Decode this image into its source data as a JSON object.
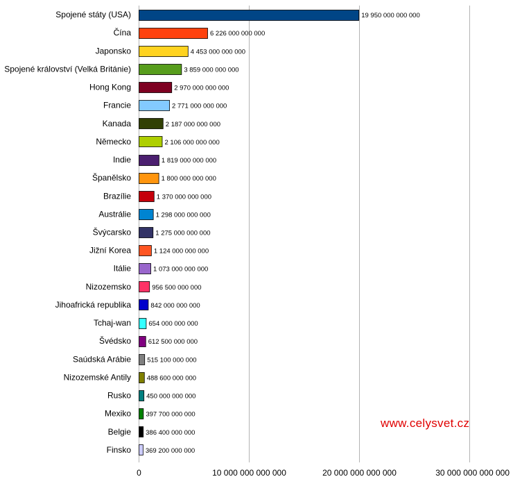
{
  "chart_data": {
    "type": "bar",
    "orientation": "horizontal",
    "categories": [
      "Spojené státy (USA)",
      "Čína",
      "Japonsko",
      "Spojené království (Velká Británie)",
      "Hong Kong",
      "Francie",
      "Kanada",
      "Německo",
      "Indie",
      "Španělsko",
      "Brazílie",
      "Austrálie",
      "Švýcarsko",
      "Jižní Korea",
      "Itálie",
      "Nizozemsko",
      "Jihoafrická republika",
      "Tchaj-wan",
      "Švédsko",
      "Saúdská Arábie",
      "Nizozemské Antily",
      "Rusko",
      "Mexiko",
      "Belgie",
      "Finsko"
    ],
    "values": [
      19950000000000,
      6226000000000,
      4453000000000,
      3859000000000,
      2970000000000,
      2771000000000,
      2187000000000,
      2106000000000,
      1819000000000,
      1800000000000,
      1370000000000,
      1298000000000,
      1275000000000,
      1124000000000,
      1073000000000,
      956500000000,
      842000000000,
      654000000000,
      612500000000,
      515100000000,
      488600000000,
      450000000000,
      397700000000,
      386400000000,
      369200000000
    ],
    "value_labels": [
      "19 950 000 000 000",
      "6 226 000 000 000",
      "4 453 000 000 000",
      "3 859 000 000 000",
      "2 970 000 000 000",
      "2 771 000 000 000",
      "2 187 000 000 000",
      "2 106 000 000 000",
      "1 819 000 000 000",
      "1 800 000 000 000",
      "1 370 000 000 000",
      "1 298 000 000 000",
      "1 275 000 000 000",
      "1 124 000 000 000",
      "1 073 000 000 000",
      "956 500 000 000",
      "842 000 000 000",
      "654 000 000 000",
      "612 500 000 000",
      "515 100 000 000",
      "488 600 000 000",
      "450 000 000 000",
      "397 700 000 000",
      "386 400 000 000",
      "369 200 000 000"
    ],
    "colors": [
      "#004586",
      "#ff420e",
      "#ffd320",
      "#579d1c",
      "#7e0021",
      "#83caff",
      "#314004",
      "#aecf00",
      "#4b1f6f",
      "#ff950e",
      "#c5000b",
      "#0084d1",
      "#333366",
      "#ff5522",
      "#9966cc",
      "#ff3366",
      "#0000cc",
      "#33ffff",
      "#800080",
      "#808080",
      "#808000",
      "#008080",
      "#008000",
      "#000000",
      "#ccccff"
    ],
    "xlim": [
      0,
      30000000000000
    ],
    "x_ticks": [
      0,
      10000000000000,
      20000000000000,
      30000000000000
    ],
    "x_tick_labels": [
      "0",
      "10 000 000 000 000",
      "20 000 000 000 000",
      "30 000 000 000 000"
    ],
    "grid": "vertical",
    "legend": "none",
    "title": "",
    "xlabel": "",
    "ylabel": ""
  },
  "watermark": {
    "text": "www.celysvet.cz",
    "color": "#e00000"
  }
}
